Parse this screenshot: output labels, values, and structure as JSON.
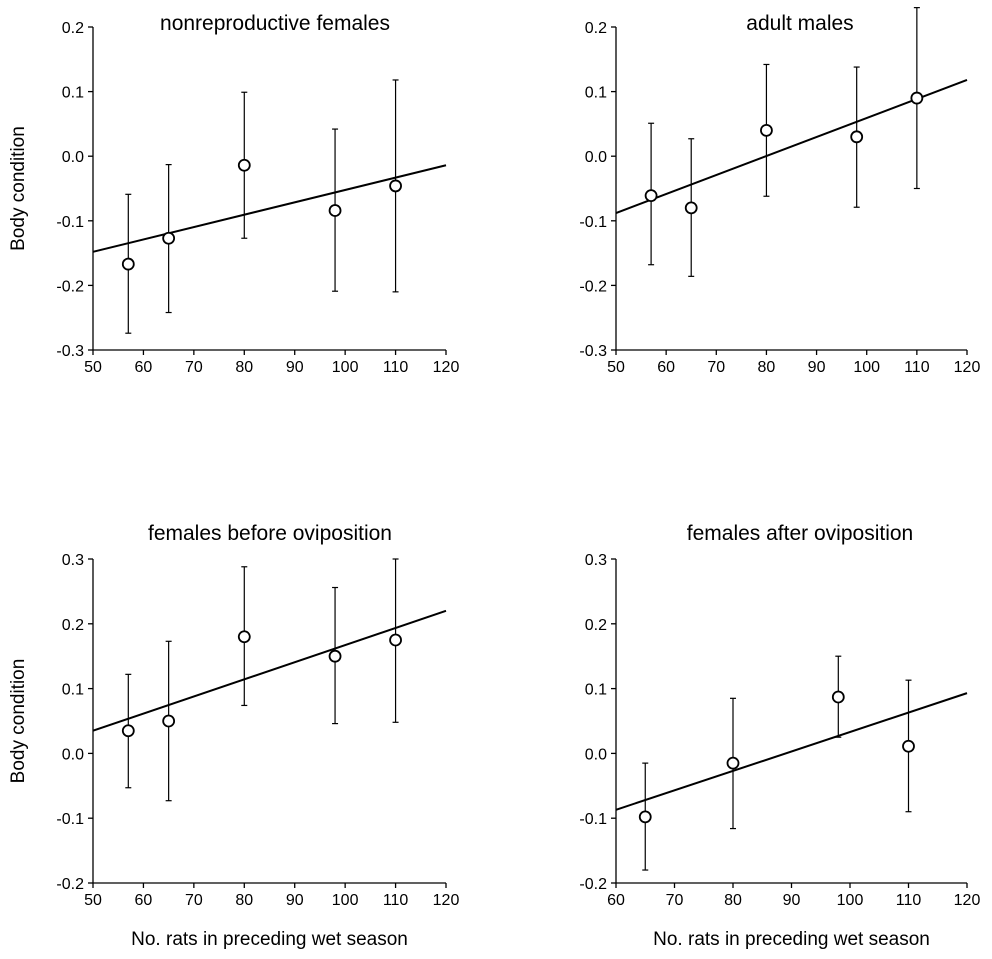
{
  "chart_data": [
    {
      "type": "scatter",
      "title": "nonreproductive females",
      "xlabel": "",
      "ylabel": "Body condition",
      "xlim": [
        50,
        120
      ],
      "ylim": [
        -0.3,
        0.2
      ],
      "xticks": [
        "50",
        "60",
        "70",
        "80",
        "90",
        "100",
        "110",
        "120"
      ],
      "yticks": [
        "-0.3",
        "-0.2",
        "-0.1",
        "0.0",
        "0.1",
        "0.2"
      ],
      "series": [
        {
          "x": [
            57,
            65,
            80,
            98,
            110
          ],
          "y": [
            -0.167,
            -0.127,
            -0.014,
            -0.084,
            -0.046
          ],
          "err_low": [
            -0.274,
            -0.242,
            -0.127,
            -0.209,
            -0.21
          ],
          "err_high": [
            -0.059,
            -0.013,
            0.099,
            0.042,
            0.118
          ]
        }
      ],
      "fit_line": {
        "x": [
          50,
          120
        ],
        "y": [
          -0.148,
          -0.014
        ]
      }
    },
    {
      "type": "scatter",
      "title": "adult males",
      "xlabel": "",
      "ylabel": "",
      "xlim": [
        50,
        120
      ],
      "ylim": [
        -0.3,
        0.2
      ],
      "xticks": [
        "50",
        "60",
        "70",
        "80",
        "90",
        "100",
        "110",
        "120"
      ],
      "yticks": [
        "-0.3",
        "-0.2",
        "-0.1",
        "0.0",
        "0.1",
        "0.2"
      ],
      "series": [
        {
          "x": [
            57,
            65,
            80,
            98,
            110
          ],
          "y": [
            -0.061,
            -0.08,
            0.04,
            0.03,
            0.09
          ],
          "err_low": [
            -0.168,
            -0.186,
            -0.062,
            -0.079,
            -0.05
          ],
          "err_high": [
            0.051,
            0.027,
            0.142,
            0.138,
            0.23
          ]
        }
      ],
      "fit_line": {
        "x": [
          50,
          120
        ],
        "y": [
          -0.088,
          0.118
        ]
      }
    },
    {
      "type": "scatter",
      "title": "females before oviposition",
      "xlabel": "No. rats in preceding wet season",
      "ylabel": "Body condition",
      "xlim": [
        50,
        120
      ],
      "ylim": [
        -0.2,
        0.3
      ],
      "xticks": [
        "50",
        "60",
        "70",
        "80",
        "90",
        "100",
        "110",
        "120"
      ],
      "yticks": [
        "-0.2",
        "-0.1",
        "0.0",
        "0.1",
        "0.2",
        "0.3"
      ],
      "series": [
        {
          "x": [
            57,
            65,
            80,
            98,
            110
          ],
          "y": [
            0.035,
            0.05,
            0.18,
            0.15,
            0.175
          ],
          "err_low": [
            -0.053,
            -0.073,
            0.074,
            0.046,
            0.048
          ],
          "err_high": [
            0.122,
            0.173,
            0.288,
            0.256,
            0.3
          ]
        }
      ],
      "fit_line": {
        "x": [
          50,
          120
        ],
        "y": [
          0.035,
          0.22
        ]
      }
    },
    {
      "type": "scatter",
      "title": "females after oviposition",
      "xlabel": "No. rats in preceding wet season",
      "ylabel": "",
      "xlim": [
        60,
        120
      ],
      "ylim": [
        -0.2,
        0.3
      ],
      "xticks": [
        "60",
        "70",
        "80",
        "90",
        "100",
        "110",
        "120"
      ],
      "yticks": [
        "-0.2",
        "-0.1",
        "0.0",
        "0.1",
        "0.2",
        "0.3"
      ],
      "series": [
        {
          "x": [
            65,
            80,
            98,
            110
          ],
          "y": [
            -0.098,
            -0.015,
            0.087,
            0.011
          ],
          "err_low": [
            -0.18,
            -0.116,
            0.025,
            -0.09
          ],
          "err_high": [
            -0.015,
            0.085,
            0.15,
            0.113
          ]
        }
      ],
      "fit_line": {
        "x": [
          60,
          120
        ],
        "y": [
          -0.087,
          0.093
        ]
      }
    }
  ]
}
